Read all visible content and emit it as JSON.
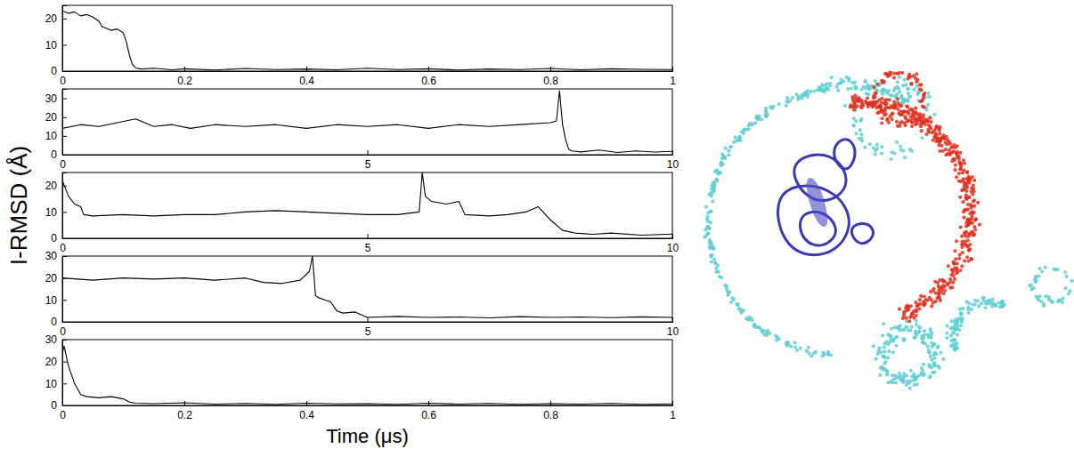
{
  "chart_data": [
    {
      "type": "line",
      "x": [
        0,
        0.01,
        0.02,
        0.03,
        0.04,
        0.05,
        0.06,
        0.065,
        0.07,
        0.08,
        0.09,
        0.1,
        0.105,
        0.11,
        0.115,
        0.12,
        0.13,
        0.15,
        0.18,
        0.2,
        0.25,
        0.3,
        0.35,
        0.4,
        0.45,
        0.5,
        0.55,
        0.6,
        0.65,
        0.7,
        0.75,
        0.8,
        0.85,
        0.9,
        0.95,
        1
      ],
      "series": [
        {
          "color": "#000000",
          "values": [
            23,
            22,
            22.5,
            21,
            21.5,
            20.5,
            19,
            17,
            16.5,
            15.5,
            16,
            14.5,
            11,
            6,
            2.5,
            1.2,
            0.8,
            1.1,
            0.5,
            0.9,
            0.4,
            1,
            0.6,
            0.8,
            0.5,
            1.1,
            0.6,
            0.9,
            0.4,
            0.8,
            0.6,
            1,
            0.5,
            0.9,
            0.7,
            0.6
          ]
        }
      ],
      "xlim": [
        0,
        1
      ],
      "xticks": [
        0,
        0.2,
        0.4,
        0.6,
        0.8,
        1
      ],
      "ylim": [
        0,
        25
      ],
      "yticks": [
        0,
        10,
        20
      ]
    },
    {
      "type": "line",
      "x": [
        0,
        0.3,
        0.6,
        0.9,
        1.2,
        1.5,
        1.8,
        2.1,
        2.5,
        3,
        3.5,
        4,
        4.5,
        5,
        5.5,
        6,
        6.5,
        7,
        7.5,
        8,
        8.1,
        8.15,
        8.2,
        8.25,
        8.3,
        8.35,
        8.5,
        8.8,
        9.1,
        9.4,
        9.7,
        10
      ],
      "series": [
        {
          "color": "#000000",
          "values": [
            14,
            16,
            15,
            17,
            19,
            15,
            16,
            14,
            16,
            15,
            16,
            14,
            16,
            15,
            16,
            14,
            16,
            15,
            16,
            17,
            18,
            34,
            16,
            8,
            3,
            2,
            1.5,
            2.5,
            1.2,
            2,
            1.4,
            1.8
          ]
        }
      ],
      "xlim": [
        0,
        10
      ],
      "xticks": [
        0,
        5,
        10
      ],
      "ylim": [
        0,
        35
      ],
      "yticks": [
        0,
        10,
        20,
        30
      ]
    },
    {
      "type": "line",
      "x": [
        0,
        0.1,
        0.2,
        0.3,
        0.35,
        0.5,
        1,
        1.5,
        2,
        2.5,
        3,
        3.5,
        4,
        4.5,
        5,
        5.5,
        5.85,
        5.9,
        5.95,
        6.05,
        6.3,
        6.5,
        6.6,
        7,
        7.3,
        7.6,
        7.8,
        8,
        8.2,
        8.4,
        8.7,
        9,
        9.5,
        10
      ],
      "series": [
        {
          "color": "#000000",
          "values": [
            22,
            16,
            13,
            12,
            9,
            8.5,
            9,
            8.5,
            9,
            9,
            10,
            10.5,
            10,
            9.5,
            9,
            9,
            10,
            25,
            16,
            14,
            13,
            14,
            9,
            8.5,
            9,
            10,
            12,
            7,
            3,
            2,
            1.5,
            2,
            1.2,
            1.6
          ]
        }
      ],
      "xlim": [
        0,
        10
      ],
      "xticks": [
        0,
        5,
        10
      ],
      "ylim": [
        0,
        25
      ],
      "yticks": [
        0,
        10,
        20
      ],
      "ylabel": "I-RMSD (Å)"
    },
    {
      "type": "line",
      "x": [
        0,
        0.5,
        1,
        1.5,
        2,
        2.5,
        3,
        3.3,
        3.6,
        3.9,
        4.05,
        4.1,
        4.15,
        4.2,
        4.3,
        4.4,
        4.5,
        4.6,
        4.8,
        5,
        5.5,
        6,
        6.5,
        7,
        7.5,
        8,
        8.5,
        9,
        9.5,
        10
      ],
      "series": [
        {
          "color": "#000000",
          "values": [
            20,
            19,
            20,
            19.5,
            20,
            19,
            20,
            18,
            17.5,
            19,
            23,
            30,
            12,
            11,
            10,
            9,
            5,
            4,
            4.5,
            2,
            2.5,
            2,
            2.2,
            1.8,
            2.4,
            2,
            2.2,
            1.9,
            2.3,
            2
          ]
        }
      ],
      "xlim": [
        0,
        10
      ],
      "xticks": [
        0,
        5,
        10
      ],
      "ylim": [
        0,
        30
      ],
      "yticks": [
        0,
        10,
        20,
        30
      ]
    },
    {
      "type": "line",
      "x": [
        0,
        0.003,
        0.01,
        0.02,
        0.03,
        0.04,
        0.06,
        0.08,
        0.1,
        0.11,
        0.12,
        0.15,
        0.2,
        0.25,
        0.3,
        0.35,
        0.4,
        0.45,
        0.5,
        0.55,
        0.6,
        0.65,
        0.7,
        0.75,
        0.8,
        0.85,
        0.9,
        0.95,
        1
      ],
      "series": [
        {
          "color": "#000000",
          "values": [
            24,
            27,
            18,
            10,
            5,
            4,
            3.5,
            4,
            3,
            1.5,
            1,
            0.8,
            1.2,
            0.6,
            0.9,
            0.5,
            1,
            0.7,
            0.8,
            0.5,
            1,
            0.6,
            0.9,
            0.5,
            0.8,
            0.6,
            0.9,
            0.5,
            0.7
          ]
        }
      ],
      "xlim": [
        0,
        1
      ],
      "xticks": [
        0,
        0.2,
        0.4,
        0.6,
        0.8,
        1
      ],
      "ylim": [
        0,
        30
      ],
      "yticks": [
        0,
        10,
        20,
        30
      ],
      "xlabel": "Time (μs)"
    }
  ]
}
